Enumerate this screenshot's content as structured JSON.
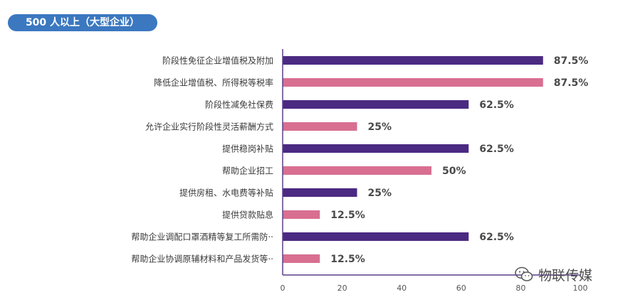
{
  "header": {
    "title": "500 人以上（大型企业）"
  },
  "watermark": {
    "text": "物联传媒",
    "icon": "wechat-icon"
  },
  "colors": {
    "purple": "#4b2a82",
    "pink": "#d86f91",
    "title_pill": "#3b78c0",
    "axis": "#5c3e8c",
    "label_text": "#3a3a3a",
    "value_text": "#4a4a4a"
  },
  "chart_data": {
    "type": "bar",
    "orientation": "horizontal",
    "categories": [
      "阶段性免征企业增值税及附加",
      "降低企业增值税、所得税等税率",
      "阶段性减免社保费",
      "允许企业实行阶段性灵活薪酬方式",
      "提供稳岗补贴",
      "帮助企业招工",
      "提供房租、水电费等补贴",
      "提供贷款贴息",
      "帮助企业调配口罩酒精等复工所需防··",
      "帮助企业协调原辅材料和产品发货等··"
    ],
    "values": [
      87.5,
      87.5,
      62.5,
      25,
      62.5,
      50,
      25,
      12.5,
      62.5,
      12.5
    ],
    "value_labels": [
      "87.5%",
      "87.5%",
      "62.5%",
      "25%",
      "62.5%",
      "50%",
      "25%",
      "12.5%",
      "62.5%",
      "12.5%"
    ],
    "bar_colors": [
      "purple",
      "pink",
      "purple",
      "pink",
      "purple",
      "pink",
      "purple",
      "pink",
      "purple",
      "pink"
    ],
    "xlim": [
      0,
      100
    ],
    "xticks": [
      0,
      20,
      40,
      60,
      80,
      100
    ],
    "grid": false
  }
}
